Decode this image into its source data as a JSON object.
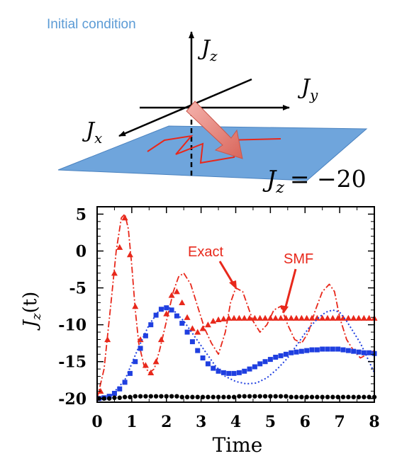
{
  "diagram": {
    "caption": "Initial condition",
    "axis_z": "J",
    "axis_z_sub": "z",
    "axis_y": "J",
    "axis_y_sub": "y",
    "axis_x": "J",
    "axis_x_sub": "x",
    "plane_label": "J",
    "plane_label_sub": "z",
    "plane_label_value": "= −20",
    "colors": {
      "plane": "#5b9bd5",
      "arrow": "#e8857e",
      "path": "#e8281b"
    }
  },
  "chart_data": {
    "type": "line",
    "title": "",
    "xlabel": "Time",
    "ylabel": "J",
    "ylabel_sub": "z",
    "ylabel_suffix": "(t)",
    "xlim": [
      0,
      8
    ],
    "ylim": [
      -20.5,
      6
    ],
    "xticks": [
      "0",
      "1",
      "2",
      "3",
      "4",
      "5",
      "6",
      "7",
      "8"
    ],
    "yticks": [
      "5",
      "0",
      "-5",
      "-10",
      "-15",
      "-20"
    ],
    "annotations": [
      {
        "text": "Exact",
        "color": "#e8281b"
      },
      {
        "text": "SMF",
        "color": "#e8281b"
      }
    ],
    "series": [
      {
        "style": "dashdot",
        "color": "#e8281b",
        "x": [
          0,
          0.2,
          0.4,
          0.55,
          0.7,
          0.8,
          0.9,
          1.0,
          1.1,
          1.2,
          1.35,
          1.5,
          1.65,
          1.8,
          2.0,
          2.2,
          2.35,
          2.5,
          2.7,
          2.9,
          3.1,
          3.3,
          3.5,
          3.7,
          3.85,
          4.0,
          4.2,
          4.35,
          4.5,
          4.7,
          4.9,
          5.1,
          5.3,
          5.5,
          5.7,
          5.9,
          6.1,
          6.3,
          6.5,
          6.7,
          6.85,
          7.0,
          7.2,
          7.4,
          7.6,
          7.8,
          8.0
        ],
        "y": [
          -20,
          -16,
          -7,
          0,
          4.5,
          5,
          3,
          -2,
          -8,
          -12.5,
          -15.5,
          -16.5,
          -16,
          -13.5,
          -9.5,
          -5.5,
          -3.5,
          -3,
          -4.5,
          -7.5,
          -10.5,
          -12.5,
          -14,
          -11,
          -7,
          -5,
          -5.5,
          -7.5,
          -9.5,
          -11,
          -10,
          -8,
          -7.5,
          -10,
          -12,
          -12.5,
          -11,
          -8,
          -5.5,
          -4.5,
          -5.5,
          -9,
          -12,
          -13.5,
          -14.5,
          -14,
          -13.5
        ]
      },
      {
        "style": "triangles",
        "color": "#e8281b",
        "x": [
          0.1,
          0.3,
          0.5,
          0.65,
          0.8,
          0.95,
          1.1,
          1.25,
          1.4,
          1.55,
          1.7,
          1.85,
          2.0,
          2.15,
          2.3,
          2.45,
          2.6,
          2.75,
          2.9,
          3.05,
          3.2,
          3.35,
          3.5,
          3.65,
          3.8,
          3.95,
          4.1,
          4.25,
          4.4,
          4.55,
          4.7,
          4.85,
          5.0,
          5.15,
          5.3,
          5.45,
          5.6,
          5.75,
          5.9,
          6.05,
          6.2,
          6.35,
          6.5,
          6.65,
          6.8,
          6.95,
          7.1,
          7.25,
          7.4,
          7.55,
          7.7,
          7.85,
          8.0
        ],
        "y": [
          -19,
          -12,
          -3,
          0.5,
          4.5,
          -0.5,
          -7.5,
          -12,
          -15.5,
          -16.5,
          -15,
          -12,
          -8.5,
          -6,
          -5.5,
          -7,
          -9,
          -10.5,
          -11,
          -10.5,
          -10,
          -9.5,
          -9.3,
          -9.2,
          -9.1,
          -9.1,
          -9.1,
          -9.1,
          -9.1,
          -9.1,
          -9.1,
          -9.1,
          -9.1,
          -9.1,
          -9.1,
          -9.1,
          -9.1,
          -9.1,
          -9.1,
          -9.1,
          -9.1,
          -9.1,
          -9.1,
          -9.1,
          -9.1,
          -9.1,
          -9.1,
          -9.1,
          -9.1,
          -9.1,
          -9.1,
          -9.1,
          -9.1
        ]
      },
      {
        "style": "dotted",
        "color": "#1f3fe0",
        "x": [
          0,
          0.4,
          0.8,
          1.2,
          1.5,
          1.8,
          2.0,
          2.2,
          2.5,
          2.8,
          3.1,
          3.4,
          3.7,
          4.0,
          4.3,
          4.6,
          4.9,
          5.2,
          5.5,
          5.8,
          6.1,
          6.4,
          6.6,
          6.8,
          7.0,
          7.2,
          7.4,
          7.6,
          7.8,
          8.0
        ],
        "y": [
          -20,
          -19.6,
          -17.5,
          -13,
          -10,
          -8,
          -7.5,
          -8,
          -9.5,
          -11.5,
          -13.5,
          -15.5,
          -17,
          -17.7,
          -18,
          -17.9,
          -17.2,
          -16,
          -14.5,
          -12.5,
          -10.5,
          -9,
          -8.3,
          -8,
          -8.3,
          -9.5,
          -11,
          -12.5,
          -14.5,
          -16.5
        ]
      },
      {
        "style": "squares",
        "color": "#1f3fe0",
        "x": [
          0.05,
          0.2,
          0.35,
          0.5,
          0.65,
          0.8,
          0.95,
          1.1,
          1.25,
          1.4,
          1.55,
          1.7,
          1.85,
          2.0,
          2.15,
          2.3,
          2.45,
          2.6,
          2.75,
          2.9,
          3.05,
          3.2,
          3.35,
          3.5,
          3.65,
          3.8,
          3.95,
          4.1,
          4.25,
          4.4,
          4.55,
          4.7,
          4.85,
          5.0,
          5.15,
          5.3,
          5.45,
          5.6,
          5.75,
          5.9,
          6.05,
          6.2,
          6.35,
          6.5,
          6.65,
          6.8,
          6.95,
          7.1,
          7.25,
          7.4,
          7.55,
          7.7,
          7.85,
          8.0
        ],
        "y": [
          -20,
          -19.9,
          -19.7,
          -19.3,
          -18.7,
          -17.8,
          -16.6,
          -15,
          -13.2,
          -11.5,
          -10,
          -8.7,
          -7.9,
          -7.7,
          -8,
          -8.8,
          -9.8,
          -11,
          -12.3,
          -13.5,
          -14.5,
          -15.3,
          -15.9,
          -16.3,
          -16.5,
          -16.6,
          -16.6,
          -16.5,
          -16.3,
          -16,
          -15.7,
          -15.3,
          -15,
          -14.7,
          -14.4,
          -14.2,
          -14,
          -13.8,
          -13.7,
          -13.6,
          -13.5,
          -13.4,
          -13.4,
          -13.3,
          -13.3,
          -13.3,
          -13.3,
          -13.4,
          -13.5,
          -13.6,
          -13.7,
          -13.8,
          -13.8,
          -13.9
        ]
      },
      {
        "style": "circles",
        "color": "#000000",
        "x": [
          0.05,
          0.2,
          0.35,
          0.5,
          0.65,
          0.8,
          0.95,
          1.1,
          1.25,
          1.4,
          1.55,
          1.7,
          1.85,
          2.0,
          2.15,
          2.3,
          2.45,
          2.6,
          2.75,
          2.9,
          3.05,
          3.2,
          3.35,
          3.5,
          3.65,
          3.8,
          3.95,
          4.1,
          4.25,
          4.4,
          4.55,
          4.7,
          4.85,
          5.0,
          5.15,
          5.3,
          5.45,
          5.6,
          5.75,
          5.9,
          6.05,
          6.2,
          6.35,
          6.5,
          6.65,
          6.8,
          6.95,
          7.1,
          7.25,
          7.4,
          7.55,
          7.7,
          7.85,
          8.0
        ],
        "y": [
          -20,
          -20,
          -20,
          -19.9,
          -19.9,
          -19.8,
          -19.8,
          -19.7,
          -19.7,
          -19.7,
          -19.7,
          -19.7,
          -19.7,
          -19.7,
          -19.7,
          -19.7,
          -19.8,
          -19.8,
          -19.8,
          -19.8,
          -19.8,
          -19.8,
          -19.8,
          -19.8,
          -19.8,
          -19.8,
          -19.8,
          -19.7,
          -19.7,
          -19.7,
          -19.7,
          -19.7,
          -19.7,
          -19.7,
          -19.7,
          -19.7,
          -19.7,
          -19.8,
          -19.8,
          -19.8,
          -19.8,
          -19.8,
          -19.8,
          -19.8,
          -19.8,
          -19.8,
          -19.8,
          -19.8,
          -19.8,
          -19.8,
          -19.8,
          -19.8,
          -19.8,
          -19.8
        ]
      }
    ]
  }
}
